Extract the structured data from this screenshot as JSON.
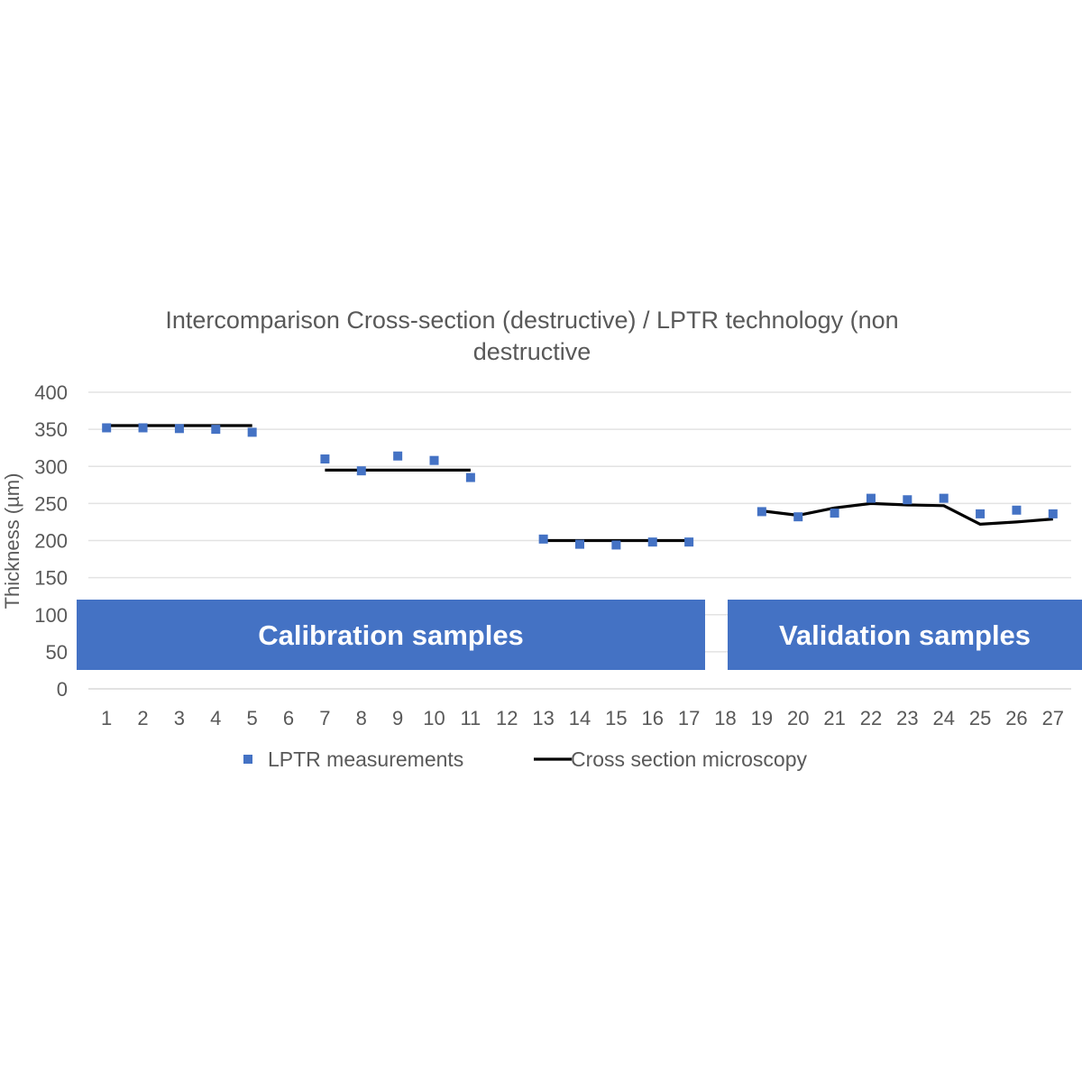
{
  "chart_data": {
    "type": "scatter",
    "title_lines": [
      "Intercomparison Cross-section (destructive) / LPTR technology (non",
      "destructive"
    ],
    "ylabel": "Thickness (µm)",
    "xlabel": "",
    "categories": [
      "1",
      "2",
      "3",
      "4",
      "5",
      "6",
      "7",
      "8",
      "9",
      "10",
      "11",
      "12",
      "13",
      "14",
      "15",
      "16",
      "17",
      "18",
      "19",
      "20",
      "21",
      "22",
      "23",
      "24",
      "25",
      "26",
      "27"
    ],
    "ylim": [
      0,
      400
    ],
    "yticks": [
      "0",
      "50",
      "100",
      "150",
      "200",
      "250",
      "300",
      "350",
      "400"
    ],
    "grid": true,
    "legend_position": "bottom",
    "series": [
      {
        "name": "LPTR measurements",
        "kind": "markers",
        "color": "#4472C4",
        "points": [
          [
            1,
            352
          ],
          [
            2,
            352
          ],
          [
            3,
            351
          ],
          [
            4,
            350
          ],
          [
            5,
            346
          ],
          [
            7,
            310
          ],
          [
            8,
            294
          ],
          [
            9,
            314
          ],
          [
            10,
            308
          ],
          [
            11,
            285
          ],
          [
            13,
            202
          ],
          [
            14,
            195
          ],
          [
            15,
            194
          ],
          [
            16,
            198
          ],
          [
            17,
            198
          ],
          [
            19,
            239
          ],
          [
            20,
            232
          ],
          [
            21,
            237
          ],
          [
            22,
            257
          ],
          [
            23,
            255
          ],
          [
            24,
            257
          ],
          [
            25,
            236
          ],
          [
            26,
            241
          ],
          [
            27,
            236
          ]
        ]
      },
      {
        "name": "Cross section microscopy",
        "kind": "line",
        "color": "#000000",
        "segments": [
          [
            [
              1,
              355
            ],
            [
              5,
              355
            ]
          ],
          [
            [
              7,
              295
            ],
            [
              11,
              295
            ]
          ],
          [
            [
              13,
              200
            ],
            [
              17,
              200
            ]
          ],
          [
            [
              19,
              240
            ],
            [
              20,
              234
            ],
            [
              21,
              244
            ],
            [
              22,
              250
            ],
            [
              23,
              248
            ],
            [
              24,
              247
            ],
            [
              25,
              222
            ],
            [
              26,
              225
            ],
            [
              27,
              229
            ]
          ]
        ]
      }
    ],
    "annotations": [
      {
        "text": "Calibration samples",
        "color": "#4472C4"
      },
      {
        "text": "Validation samples",
        "color": "#4472C4"
      }
    ]
  }
}
